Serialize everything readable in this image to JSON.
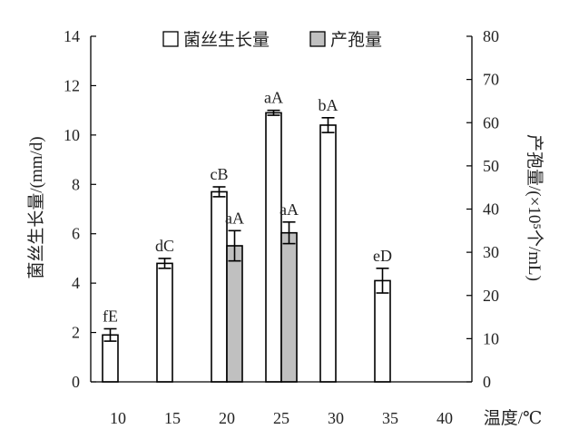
{
  "chart_data": {
    "type": "bar",
    "xlabel": "温度/℃",
    "ylabel_left": "菌丝生长量/(mm/d)",
    "ylabel_right": "产孢量/(×10⁵个/mL)",
    "categories": [
      "10",
      "15",
      "20",
      "25",
      "30",
      "35",
      "40"
    ],
    "ylim_left": [
      0,
      14
    ],
    "yticks_left": [
      "0",
      "2",
      "4",
      "6",
      "8",
      "10",
      "12",
      "14"
    ],
    "ylim_right": [
      0,
      80
    ],
    "yticks_right": [
      "0",
      "10",
      "20",
      "30",
      "40",
      "50",
      "60",
      "70",
      "80"
    ],
    "grid": false,
    "legend_position": "top",
    "series": [
      {
        "name": "菌丝生长量",
        "axis": "left",
        "color": "#ffffff",
        "values": [
          1.9,
          4.8,
          7.7,
          10.9,
          10.4,
          4.1,
          null
        ],
        "errors": [
          0.25,
          0.2,
          0.2,
          0.1,
          0.3,
          0.5,
          null
        ],
        "labels": [
          "fE",
          "dC",
          "cB",
          "aA",
          "bA",
          "eD",
          ""
        ]
      },
      {
        "name": "产孢量",
        "axis": "right",
        "color": "#c0c0c0",
        "values": [
          null,
          null,
          31.5,
          34.5,
          null,
          null,
          null
        ],
        "errors": [
          null,
          null,
          3.5,
          2.5,
          null,
          null,
          null
        ],
        "labels": [
          "",
          "",
          "aA",
          "aA",
          "",
          "",
          ""
        ]
      }
    ]
  }
}
